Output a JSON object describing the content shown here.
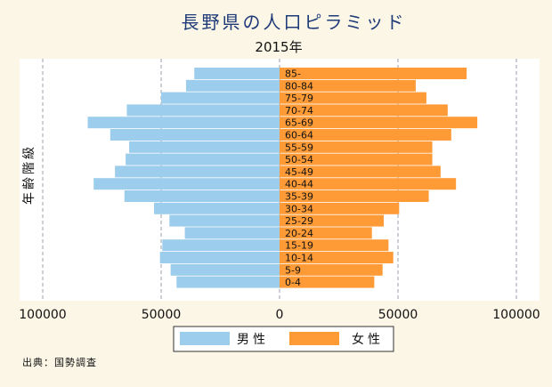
{
  "chart_data": {
    "type": "bar",
    "orientation": "horizontal-population-pyramid",
    "title": "長野県の人口ピラミッド",
    "subtitle": "2015年",
    "ylabel": "年齢階級",
    "source": "出典：国勢調査",
    "categories": [
      "0-4",
      "5-9",
      "10-14",
      "15-19",
      "20-24",
      "25-29",
      "30-34",
      "35-39",
      "40-44",
      "45-49",
      "50-54",
      "55-59",
      "60-64",
      "65-69",
      "70-74",
      "75-79",
      "80-84",
      "85-"
    ],
    "series": [
      {
        "name": "男性",
        "side": "left",
        "color": "#9dcdec",
        "values": [
          43500,
          46000,
          50500,
          49500,
          40000,
          46500,
          53000,
          65500,
          78500,
          69500,
          65000,
          63500,
          71500,
          81000,
          64500,
          50000,
          39500,
          36000
        ]
      },
      {
        "name": "女性",
        "side": "right",
        "color": "#ff9b37",
        "values": [
          40000,
          43500,
          48000,
          46000,
          39000,
          44000,
          50500,
          63000,
          74500,
          68000,
          64500,
          64500,
          72500,
          83500,
          71000,
          62000,
          57500,
          79000
        ]
      }
    ],
    "xlim": [
      -100000,
      100000
    ],
    "xticks": [
      -100000,
      -50000,
      0,
      50000,
      100000
    ],
    "xtick_labels": [
      "100000",
      "50000",
      "0",
      "50000",
      "100000"
    ],
    "grid": true,
    "legend_position": "bottom"
  }
}
